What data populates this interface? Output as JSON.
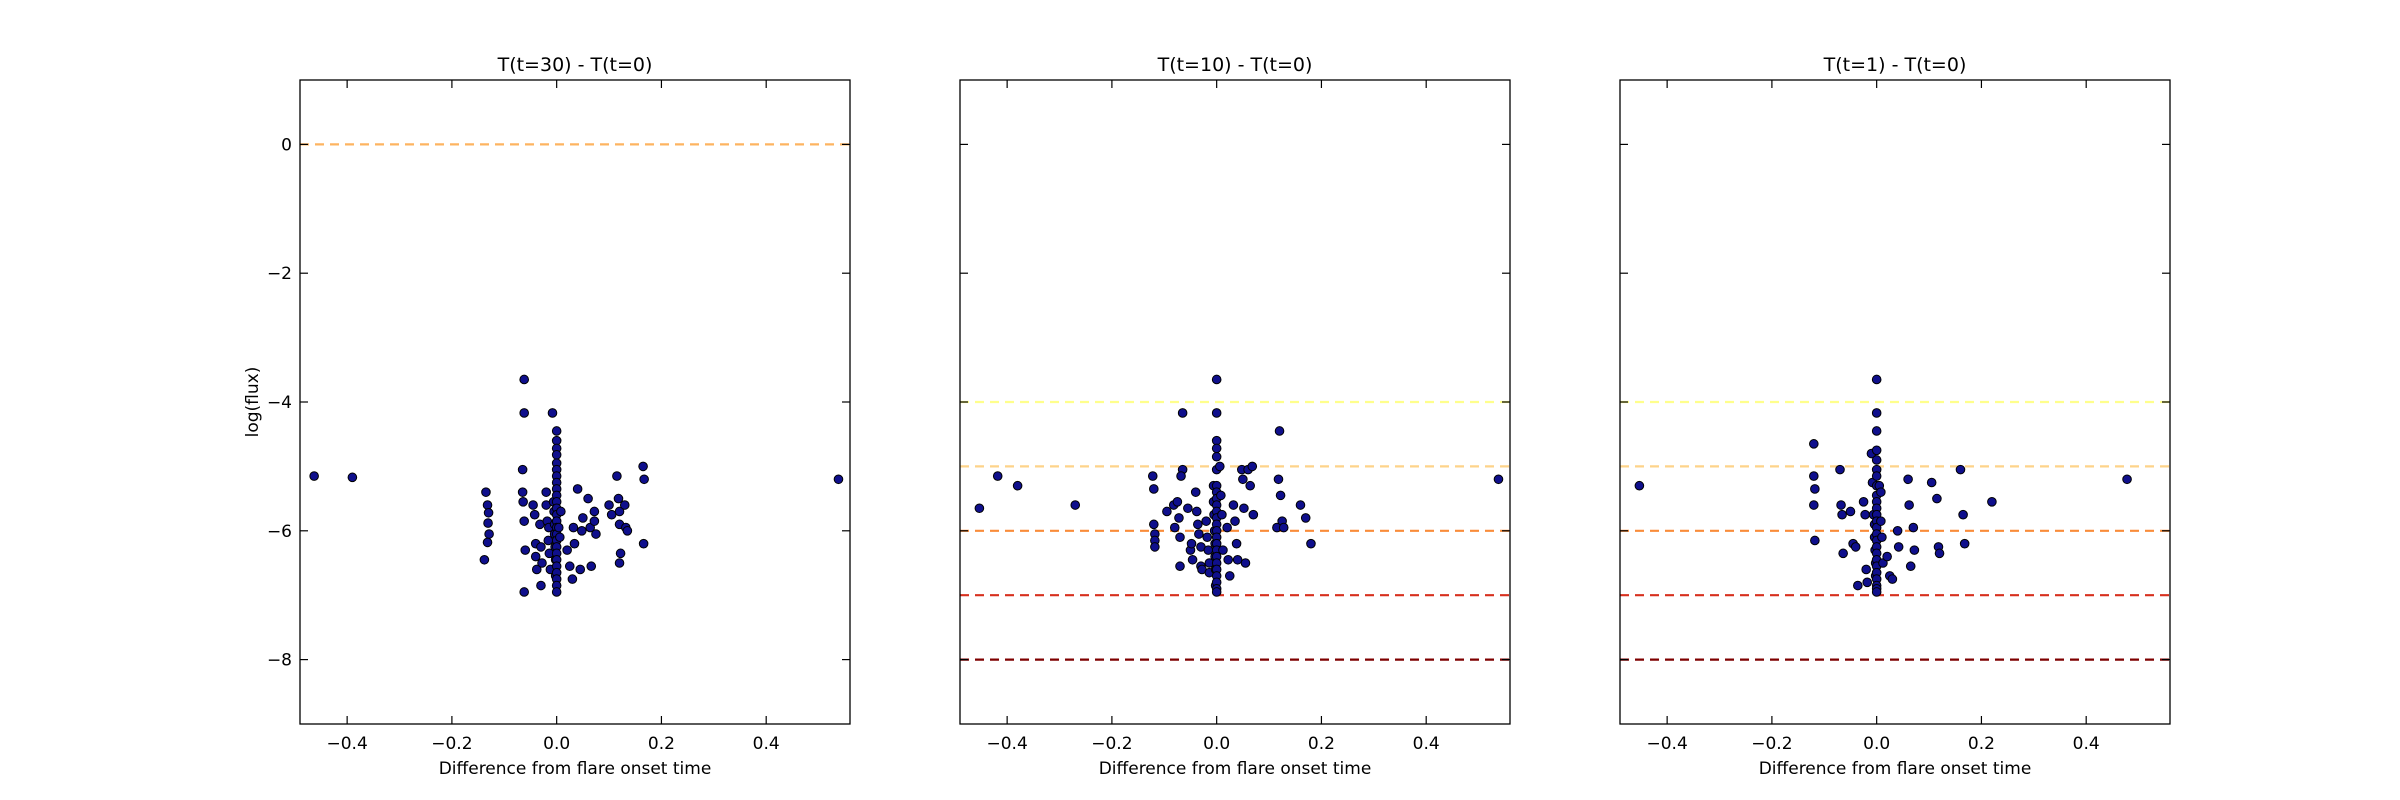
{
  "chart_data": [
    {
      "type": "scatter",
      "title": "T(t=30) - T(t=0)",
      "xlabel": "Difference from flare onset time",
      "ylabel": "log(flux)",
      "xlim": [
        -0.49,
        0.56
      ],
      "ylim": [
        -9,
        1
      ],
      "xticks": [
        -0.4,
        -0.2,
        0.0,
        0.2,
        0.4
      ],
      "xtick_labels": [
        "−0.4",
        "−0.2",
        "0.0",
        "0.2",
        "0.4"
      ],
      "yticks": [
        0,
        -2,
        -4,
        -6,
        -8
      ],
      "ytick_labels": [
        "0",
        "−2",
        "−4",
        "−6",
        "−8"
      ],
      "hlines": [
        {
          "y": 0,
          "color": "#fdb460"
        }
      ],
      "marker_color": "#0f0f8c",
      "points": [
        [
          -0.463,
          -5.15
        ],
        [
          -0.39,
          -5.17
        ],
        [
          0.538,
          -5.2
        ],
        [
          -0.135,
          -5.4
        ],
        [
          -0.132,
          -5.6
        ],
        [
          -0.13,
          -5.72
        ],
        [
          -0.131,
          -5.88
        ],
        [
          -0.129,
          -6.05
        ],
        [
          -0.132,
          -6.18
        ],
        [
          -0.138,
          -6.45
        ],
        [
          -0.062,
          -3.65
        ],
        [
          -0.062,
          -4.17
        ],
        [
          -0.065,
          -5.05
        ],
        [
          -0.065,
          -5.4
        ],
        [
          -0.064,
          -5.55
        ],
        [
          -0.062,
          -5.85
        ],
        [
          -0.06,
          -6.3
        ],
        [
          -0.062,
          -6.95
        ],
        [
          -0.045,
          -5.6
        ],
        [
          -0.042,
          -5.75
        ],
        [
          -0.04,
          -6.2
        ],
        [
          -0.04,
          -6.4
        ],
        [
          -0.038,
          -6.6
        ],
        [
          -0.032,
          -5.9
        ],
        [
          -0.03,
          -6.25
        ],
        [
          -0.028,
          -6.5
        ],
        [
          -0.03,
          -6.85
        ],
        [
          -0.02,
          -5.4
        ],
        [
          -0.02,
          -5.6
        ],
        [
          -0.018,
          -5.85
        ],
        [
          -0.015,
          -5.95
        ],
        [
          -0.016,
          -6.15
        ],
        [
          -0.014,
          -6.35
        ],
        [
          -0.012,
          -6.6
        ],
        [
          -0.008,
          -4.17
        ],
        [
          -0.006,
          -5.55
        ],
        [
          -0.005,
          -5.7
        ],
        [
          -0.004,
          -5.9
        ],
        [
          -0.004,
          -6.05
        ],
        [
          -0.003,
          -6.25
        ],
        [
          -0.002,
          -6.45
        ],
        [
          -0.002,
          -6.7
        ],
        [
          0.0,
          -4.45
        ],
        [
          0.0,
          -4.6
        ],
        [
          0.0,
          -4.72
        ],
        [
          0.0,
          -4.82
        ],
        [
          0.0,
          -4.95
        ],
        [
          0.0,
          -5.05
        ],
        [
          0.0,
          -5.15
        ],
        [
          0.0,
          -5.25
        ],
        [
          0.0,
          -5.35
        ],
        [
          0.0,
          -5.45
        ],
        [
          0.0,
          -5.55
        ],
        [
          0.0,
          -5.65
        ],
        [
          0.0,
          -5.75
        ],
        [
          0.0,
          -5.85
        ],
        [
          0.0,
          -5.95
        ],
        [
          0.0,
          -6.05
        ],
        [
          0.0,
          -6.15
        ],
        [
          0.0,
          -6.25
        ],
        [
          0.0,
          -6.35
        ],
        [
          0.0,
          -6.45
        ],
        [
          0.0,
          -6.55
        ],
        [
          0.0,
          -6.65
        ],
        [
          0.0,
          -6.75
        ],
        [
          0.0,
          -6.85
        ],
        [
          0.0,
          -6.95
        ],
        [
          0.004,
          -5.95
        ],
        [
          0.006,
          -6.1
        ],
        [
          0.008,
          -5.7
        ],
        [
          0.02,
          -6.3
        ],
        [
          0.025,
          -6.55
        ],
        [
          0.03,
          -6.75
        ],
        [
          0.032,
          -5.95
        ],
        [
          0.034,
          -6.2
        ],
        [
          0.04,
          -5.35
        ],
        [
          0.045,
          -6.6
        ],
        [
          0.048,
          -6.0
        ],
        [
          0.05,
          -5.8
        ],
        [
          0.06,
          -5.5
        ],
        [
          0.064,
          -5.95
        ],
        [
          0.066,
          -6.55
        ],
        [
          0.072,
          -5.7
        ],
        [
          0.072,
          -5.85
        ],
        [
          0.075,
          -6.05
        ],
        [
          0.1,
          -5.6
        ],
        [
          0.105,
          -5.75
        ],
        [
          0.115,
          -5.15
        ],
        [
          0.118,
          -5.5
        ],
        [
          0.12,
          -5.7
        ],
        [
          0.12,
          -5.9
        ],
        [
          0.122,
          -6.35
        ],
        [
          0.12,
          -6.5
        ],
        [
          0.13,
          -5.6
        ],
        [
          0.132,
          -5.95
        ],
        [
          0.135,
          -6.0
        ],
        [
          0.165,
          -5.0
        ],
        [
          0.167,
          -5.2
        ],
        [
          0.166,
          -6.2
        ]
      ]
    },
    {
      "type": "scatter",
      "title": "T(t=10) - T(t=0)",
      "xlabel": "Difference from flare onset time",
      "ylabel": "",
      "xlim": [
        -0.49,
        0.56
      ],
      "ylim": [
        -9,
        1
      ],
      "xticks": [
        -0.4,
        -0.2,
        0.0,
        0.2,
        0.4
      ],
      "xtick_labels": [
        "−0.4",
        "−0.2",
        "0.0",
        "0.2",
        "0.4"
      ],
      "yticks": [
        0,
        -2,
        -4,
        -6,
        -8
      ],
      "ytick_labels": [],
      "hlines": [
        {
          "y": -4,
          "color": "#ffff8c"
        },
        {
          "y": -5,
          "color": "#fdd38a"
        },
        {
          "y": -6,
          "color": "#f98c3a"
        },
        {
          "y": -7,
          "color": "#d7301f"
        },
        {
          "y": -8,
          "color": "#7f0000"
        }
      ],
      "marker_color": "#0f0f8c",
      "points": [
        [
          -0.453,
          -5.65
        ],
        [
          -0.418,
          -5.15
        ],
        [
          -0.38,
          -5.3
        ],
        [
          -0.27,
          -5.6
        ],
        [
          0.538,
          -5.2
        ],
        [
          -0.122,
          -5.15
        ],
        [
          -0.12,
          -5.35
        ],
        [
          -0.12,
          -5.9
        ],
        [
          -0.118,
          -6.05
        ],
        [
          -0.118,
          -6.15
        ],
        [
          -0.118,
          -6.25
        ],
        [
          -0.095,
          -5.7
        ],
        [
          -0.082,
          -5.6
        ],
        [
          -0.08,
          -5.95
        ],
        [
          -0.075,
          -5.55
        ],
        [
          -0.072,
          -5.8
        ],
        [
          -0.07,
          -6.1
        ],
        [
          -0.07,
          -6.55
        ],
        [
          -0.065,
          -4.17
        ],
        [
          -0.065,
          -5.05
        ],
        [
          -0.068,
          -5.15
        ],
        [
          -0.055,
          -5.65
        ],
        [
          -0.05,
          -6.3
        ],
        [
          -0.048,
          -6.2
        ],
        [
          -0.046,
          -6.45
        ],
        [
          -0.04,
          -5.4
        ],
        [
          -0.038,
          -5.7
        ],
        [
          -0.036,
          -5.9
        ],
        [
          -0.034,
          -6.05
        ],
        [
          -0.03,
          -6.25
        ],
        [
          -0.03,
          -6.55
        ],
        [
          -0.028,
          -6.6
        ],
        [
          -0.02,
          -5.85
        ],
        [
          -0.018,
          -6.1
        ],
        [
          -0.016,
          -6.3
        ],
        [
          -0.014,
          -6.5
        ],
        [
          -0.014,
          -6.65
        ],
        [
          -0.006,
          -5.3
        ],
        [
          -0.006,
          -5.55
        ],
        [
          -0.005,
          -5.75
        ],
        [
          -0.004,
          -6.0
        ],
        [
          -0.003,
          -6.2
        ],
        [
          -0.003,
          -6.4
        ],
        [
          -0.002,
          -6.6
        ],
        [
          -0.002,
          -6.85
        ],
        [
          0.0,
          -3.65
        ],
        [
          0.0,
          -4.17
        ],
        [
          0.0,
          -4.6
        ],
        [
          0.0,
          -4.72
        ],
        [
          0.0,
          -4.85
        ],
        [
          0.0,
          -5.05
        ],
        [
          0.0,
          -5.3
        ],
        [
          0.0,
          -5.4
        ],
        [
          0.0,
          -5.5
        ],
        [
          0.0,
          -5.6
        ],
        [
          0.0,
          -5.7
        ],
        [
          0.0,
          -5.8
        ],
        [
          0.0,
          -5.9
        ],
        [
          0.0,
          -6.0
        ],
        [
          0.0,
          -6.1
        ],
        [
          0.0,
          -6.2
        ],
        [
          0.0,
          -6.3
        ],
        [
          0.0,
          -6.4
        ],
        [
          0.0,
          -6.5
        ],
        [
          0.0,
          -6.6
        ],
        [
          0.0,
          -6.7
        ],
        [
          0.0,
          -6.8
        ],
        [
          0.0,
          -6.9
        ],
        [
          0.0,
          -6.95
        ],
        [
          0.006,
          -5.0
        ],
        [
          0.008,
          -5.45
        ],
        [
          0.01,
          -5.75
        ],
        [
          0.012,
          -6.3
        ],
        [
          0.02,
          -5.95
        ],
        [
          0.022,
          -6.45
        ],
        [
          0.025,
          -6.7
        ],
        [
          0.032,
          -5.6
        ],
        [
          0.035,
          -5.85
        ],
        [
          0.038,
          -6.2
        ],
        [
          0.04,
          -6.45
        ],
        [
          0.048,
          -5.05
        ],
        [
          0.05,
          -5.2
        ],
        [
          0.052,
          -5.65
        ],
        [
          0.055,
          -6.5
        ],
        [
          0.06,
          -5.05
        ],
        [
          0.064,
          -5.3
        ],
        [
          0.068,
          -5.0
        ],
        [
          0.07,
          -5.75
        ],
        [
          0.115,
          -5.95
        ],
        [
          0.118,
          -5.2
        ],
        [
          0.12,
          -4.45
        ],
        [
          0.122,
          -5.45
        ],
        [
          0.125,
          -5.85
        ],
        [
          0.128,
          -5.95
        ],
        [
          0.16,
          -5.6
        ],
        [
          0.17,
          -5.8
        ],
        [
          0.18,
          -6.2
        ]
      ]
    },
    {
      "type": "scatter",
      "title": "T(t=1) - T(t=0)",
      "xlabel": "Difference from flare onset time",
      "ylabel": "",
      "xlim": [
        -0.49,
        0.56
      ],
      "ylim": [
        -9,
        1
      ],
      "xticks": [
        -0.4,
        -0.2,
        0.0,
        0.2,
        0.4
      ],
      "xtick_labels": [
        "−0.4",
        "−0.2",
        "0.0",
        "0.2",
        "0.4"
      ],
      "yticks": [
        0,
        -2,
        -4,
        -6,
        -8
      ],
      "ytick_labels": [],
      "hlines": [
        {
          "y": -4,
          "color": "#ffff8c"
        },
        {
          "y": -5,
          "color": "#fdd38a"
        },
        {
          "y": -6,
          "color": "#f98c3a"
        },
        {
          "y": -7,
          "color": "#d7301f"
        },
        {
          "y": -8,
          "color": "#7f0000"
        }
      ],
      "marker_color": "#0f0f8c",
      "points": [
        [
          -0.453,
          -5.3
        ],
        [
          0.478,
          -5.2
        ],
        [
          -0.12,
          -4.65
        ],
        [
          -0.12,
          -5.15
        ],
        [
          -0.118,
          -5.35
        ],
        [
          -0.12,
          -5.6
        ],
        [
          -0.118,
          -6.15
        ],
        [
          -0.07,
          -5.05
        ],
        [
          -0.068,
          -5.6
        ],
        [
          -0.066,
          -5.75
        ],
        [
          -0.064,
          -6.35
        ],
        [
          -0.05,
          -5.7
        ],
        [
          -0.045,
          -6.2
        ],
        [
          -0.04,
          -6.25
        ],
        [
          -0.036,
          -6.85
        ],
        [
          -0.025,
          -5.55
        ],
        [
          -0.022,
          -5.75
        ],
        [
          -0.02,
          -6.6
        ],
        [
          -0.018,
          -6.8
        ],
        [
          -0.01,
          -4.8
        ],
        [
          -0.008,
          -5.25
        ],
        [
          -0.006,
          -5.75
        ],
        [
          -0.004,
          -5.9
        ],
        [
          -0.004,
          -6.1
        ],
        [
          -0.003,
          -6.3
        ],
        [
          -0.002,
          -6.5
        ],
        [
          -0.002,
          -6.7
        ],
        [
          0.0,
          -3.65
        ],
        [
          0.0,
          -4.17
        ],
        [
          0.0,
          -4.45
        ],
        [
          0.0,
          -4.75
        ],
        [
          0.0,
          -4.9
        ],
        [
          0.0,
          -5.05
        ],
        [
          0.0,
          -5.15
        ],
        [
          0.0,
          -5.3
        ],
        [
          0.0,
          -5.45
        ],
        [
          0.0,
          -5.55
        ],
        [
          0.0,
          -5.65
        ],
        [
          0.0,
          -5.75
        ],
        [
          0.0,
          -5.85
        ],
        [
          0.0,
          -5.95
        ],
        [
          0.0,
          -6.05
        ],
        [
          0.0,
          -6.15
        ],
        [
          0.0,
          -6.25
        ],
        [
          0.0,
          -6.35
        ],
        [
          0.0,
          -6.45
        ],
        [
          0.0,
          -6.55
        ],
        [
          0.0,
          -6.65
        ],
        [
          0.0,
          -6.75
        ],
        [
          0.0,
          -6.85
        ],
        [
          0.0,
          -6.9
        ],
        [
          0.0,
          -6.95
        ],
        [
          0.005,
          -5.3
        ],
        [
          0.008,
          -5.4
        ],
        [
          0.008,
          -5.85
        ],
        [
          0.01,
          -6.1
        ],
        [
          0.012,
          -6.5
        ],
        [
          0.02,
          -6.4
        ],
        [
          0.025,
          -6.7
        ],
        [
          0.03,
          -6.75
        ],
        [
          0.04,
          -6.0
        ],
        [
          0.042,
          -6.25
        ],
        [
          0.06,
          -5.2
        ],
        [
          0.062,
          -5.6
        ],
        [
          0.065,
          -6.55
        ],
        [
          0.07,
          -5.95
        ],
        [
          0.072,
          -6.3
        ],
        [
          0.105,
          -5.25
        ],
        [
          0.115,
          -5.5
        ],
        [
          0.118,
          -6.25
        ],
        [
          0.12,
          -6.35
        ],
        [
          0.16,
          -5.05
        ],
        [
          0.165,
          -5.75
        ],
        [
          0.168,
          -6.2
        ],
        [
          0.22,
          -5.55
        ]
      ]
    }
  ]
}
